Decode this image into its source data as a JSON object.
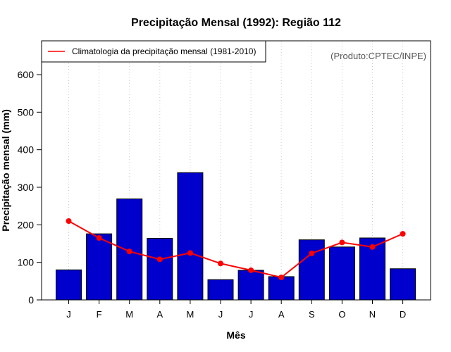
{
  "chart_data": {
    "type": "bar",
    "title": "Precipitação Mensal (1992): Região 112",
    "xlabel": "Mês",
    "ylabel": "Precipitação mensal (mm)",
    "credit": "(Produto:CPTEC/INPE)",
    "ylim": [
      0,
      690
    ],
    "yticks": [
      0,
      100,
      200,
      300,
      400,
      500,
      600
    ],
    "categories": [
      "J",
      "F",
      "M",
      "A",
      "M",
      "J",
      "J",
      "A",
      "S",
      "O",
      "N",
      "D"
    ],
    "series": [
      {
        "name": "Precipitação mensal (1992)",
        "kind": "bar",
        "color": "#0000CC",
        "values": [
          80,
          176,
          269,
          164,
          339,
          54,
          79,
          62,
          160,
          141,
          165,
          83
        ]
      },
      {
        "name": "Climatologia da precipitação mensal (1981-2010)",
        "kind": "line",
        "color": "#FF0000",
        "values": [
          210,
          165,
          129,
          108,
          125,
          97,
          79,
          60,
          124,
          153,
          141,
          176
        ]
      }
    ],
    "legend": {
      "position": "top-left",
      "entries": [
        "Climatologia da precipitação mensal (1981-2010)"
      ]
    },
    "grid": "vertical-dotted"
  }
}
